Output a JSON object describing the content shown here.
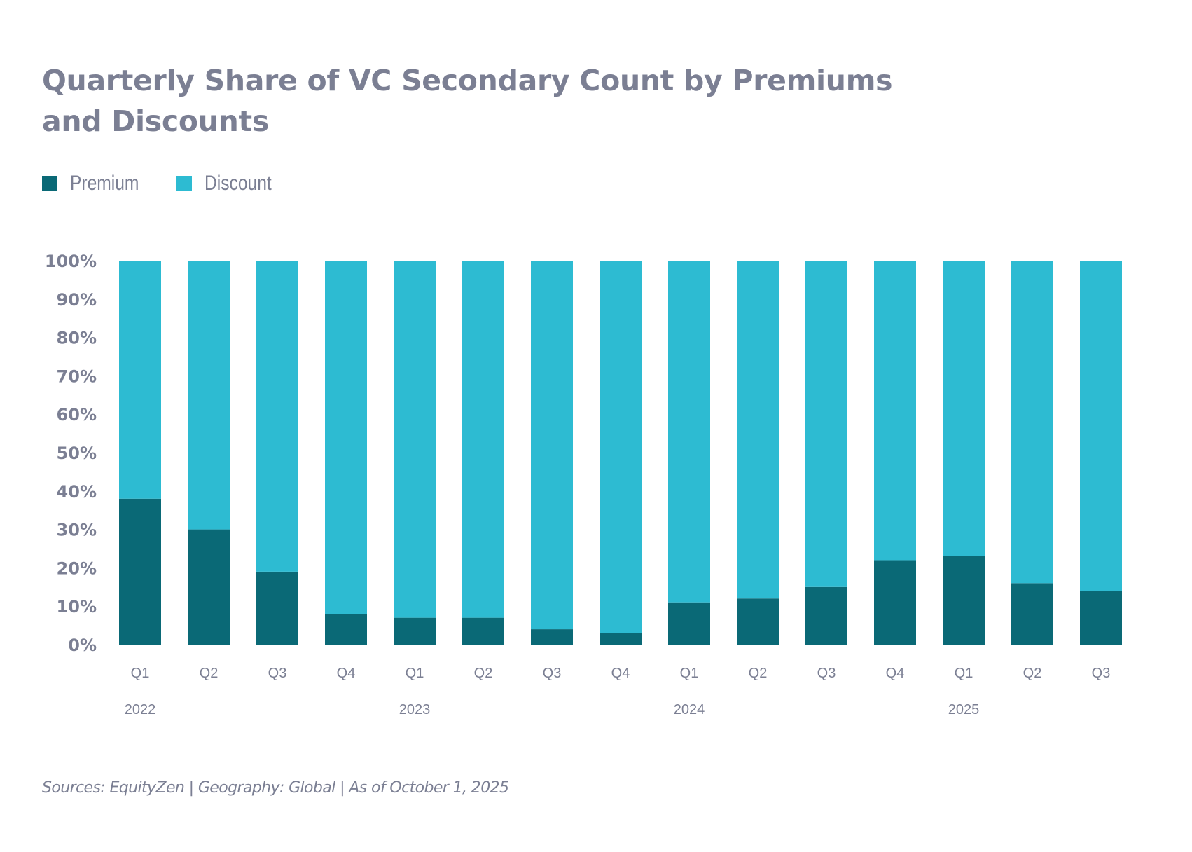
{
  "title": "Quarterly Share of VC Secondary Count by Premiums and Discounts",
  "title_lines": [
    "Quarterly Share of VC Secondary Count by Premiums",
    "and Discounts"
  ],
  "legend": [
    {
      "label": "Premium",
      "color": "#0a6976"
    },
    {
      "label": "Discount",
      "color": "#2dbbd2"
    }
  ],
  "source": "Sources: EquityZen | Geography: Global | As of October 1, 2025",
  "chart_data": {
    "type": "bar",
    "stacked": true,
    "title": "Quarterly Share of VC Secondary Count by Premiums and Discounts",
    "xlabel": "",
    "ylabel": "",
    "ylim": [
      0,
      100
    ],
    "y_ticks": [
      "0%",
      "10%",
      "20%",
      "30%",
      "40%",
      "50%",
      "60%",
      "70%",
      "80%",
      "90%",
      "100%"
    ],
    "y_tick_values": [
      0,
      10,
      20,
      30,
      40,
      50,
      60,
      70,
      80,
      90,
      100
    ],
    "categories": [
      "Q1",
      "Q2",
      "Q3",
      "Q4",
      "Q1",
      "Q2",
      "Q3",
      "Q4",
      "Q1",
      "Q2",
      "Q3",
      "Q4",
      "Q1",
      "Q2",
      "Q3"
    ],
    "year_labels": [
      {
        "label": "2022",
        "index": 0
      },
      {
        "label": "2023",
        "index": 4
      },
      {
        "label": "2024",
        "index": 8
      },
      {
        "label": "2025",
        "index": 12
      }
    ],
    "legend_position": "top-left",
    "grid": false,
    "series": [
      {
        "name": "Premium",
        "color": "#0a6976",
        "values": [
          38,
          30,
          19,
          8,
          7,
          7,
          4,
          3,
          11,
          12,
          15,
          22,
          23,
          16,
          14
        ]
      },
      {
        "name": "Discount",
        "color": "#2dbbd2",
        "values": [
          62,
          70,
          81,
          92,
          93,
          93,
          96,
          97,
          89,
          88,
          85,
          78,
          77,
          84,
          86
        ]
      }
    ]
  }
}
